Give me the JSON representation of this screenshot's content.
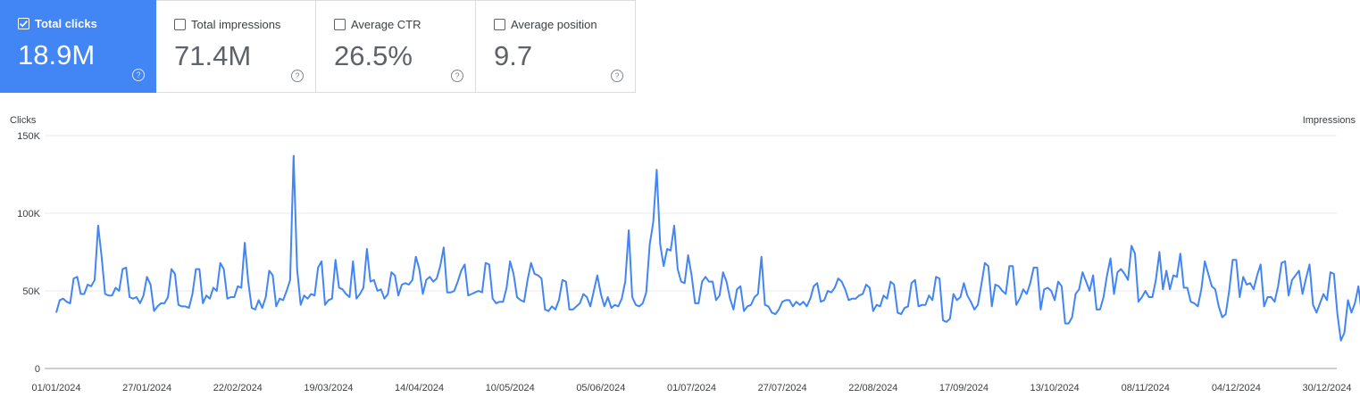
{
  "metrics": [
    {
      "label": "Total clicks",
      "value": "18.9M",
      "selected": true
    },
    {
      "label": "Total impressions",
      "value": "71.4M",
      "selected": false
    },
    {
      "label": "Average CTR",
      "value": "26.5%",
      "selected": false
    },
    {
      "label": "Average position",
      "value": "9.7",
      "selected": false
    }
  ],
  "help_glyph": "?",
  "colors": {
    "accent": "#4285f4",
    "line": "#4285f4",
    "grid": "#e8eaed"
  },
  "chart_data": {
    "type": "line",
    "ylabel": "Clicks",
    "y2label": "Impressions",
    "ylim": [
      0,
      150000
    ],
    "yticks": [
      0,
      50000,
      100000,
      150000
    ],
    "ytick_labels": [
      "0",
      "50K",
      "100K",
      "150K"
    ],
    "xlim": [
      "2024-01-01",
      "2024-12-30"
    ],
    "xtick_labels": [
      "01/01/2024",
      "27/01/2024",
      "22/02/2024",
      "19/03/2024",
      "14/04/2024",
      "10/05/2024",
      "05/06/2024",
      "01/07/2024",
      "27/07/2024",
      "22/08/2024",
      "17/09/2024",
      "13/10/2024",
      "08/11/2024",
      "04/12/2024",
      "30/12/2024"
    ],
    "grid": true,
    "series": [
      {
        "name": "Clicks",
        "x_start": "2024-01-01",
        "values": [
          36000,
          44000,
          45000,
          43000,
          42000,
          58000,
          59000,
          48000,
          48000,
          54000,
          53000,
          57000,
          92000,
          72000,
          48000,
          47000,
          47000,
          52000,
          50000,
          64000,
          65000,
          46000,
          45000,
          46000,
          42000,
          47000,
          59000,
          54000,
          37000,
          40000,
          42000,
          42000,
          46000,
          64000,
          61000,
          41000,
          40000,
          40000,
          39000,
          48000,
          64000,
          64000,
          42000,
          47000,
          45000,
          52000,
          50000,
          68000,
          64000,
          45000,
          46000,
          46000,
          53000,
          52000,
          81000,
          56000,
          39000,
          38000,
          44000,
          39000,
          46000,
          63000,
          60000,
          40000,
          45000,
          44000,
          50000,
          57000,
          137000,
          64000,
          41000,
          47000,
          45000,
          48000,
          47000,
          65000,
          69000,
          41000,
          44000,
          45000,
          70000,
          52000,
          51000,
          48000,
          46000,
          69000,
          45000,
          48000,
          52000,
          77000,
          56000,
          57000,
          50000,
          51000,
          45000,
          48000,
          62000,
          60000,
          47000,
          54000,
          55000,
          54000,
          57000,
          72000,
          64000,
          48000,
          57000,
          59000,
          56000,
          58000,
          66000,
          78000,
          49000,
          49000,
          50000,
          56000,
          63000,
          67000,
          47000,
          48000,
          49000,
          50000,
          49000,
          68000,
          67000,
          45000,
          42000,
          43000,
          43000,
          52000,
          69000,
          61000,
          46000,
          44000,
          43000,
          57000,
          68000,
          61000,
          60000,
          58000,
          38000,
          37000,
          40000,
          38000,
          44000,
          57000,
          56000,
          38000,
          38000,
          40000,
          42000,
          48000,
          46000,
          40000,
          50000,
          60000,
          48000,
          40000,
          46000,
          39000,
          41000,
          40000,
          45000,
          56000,
          89000,
          46000,
          41000,
          40000,
          42000,
          49000,
          80000,
          94000,
          128000,
          80000,
          66000,
          77000,
          76000,
          92000,
          64000,
          56000,
          55000,
          73000,
          60000,
          42000,
          42000,
          56000,
          59000,
          56000,
          56000,
          44000,
          47000,
          62000,
          56000,
          45000,
          38000,
          51000,
          53000,
          37000,
          40000,
          41000,
          46000,
          48000,
          72000,
          41000,
          40000,
          36000,
          35000,
          38000,
          43000,
          44000,
          44000,
          40000,
          43000,
          41000,
          43000,
          40000,
          45000,
          53000,
          55000,
          43000,
          44000,
          50000,
          49000,
          52000,
          58000,
          56000,
          51000,
          44000,
          45000,
          45000,
          47000,
          48000,
          54000,
          52000,
          37000,
          41000,
          40000,
          47000,
          45000,
          56000,
          54000,
          36000,
          35000,
          39000,
          40000,
          55000,
          57000,
          40000,
          41000,
          41000,
          47000,
          44000,
          59000,
          58000,
          31000,
          30000,
          32000,
          48000,
          44000,
          46000,
          55000,
          47000,
          43000,
          38000,
          41000,
          54000,
          68000,
          66000,
          40000,
          54000,
          53000,
          50000,
          48000,
          66000,
          66000,
          41000,
          45000,
          51000,
          48000,
          55000,
          65000,
          65000,
          38000,
          51000,
          52000,
          50000,
          44000,
          56000,
          53000,
          29000,
          29000,
          33000,
          48000,
          51000,
          62000,
          56000,
          50000,
          60000,
          38000,
          38000,
          46000,
          60000,
          71000,
          48000,
          62000,
          64000,
          61000,
          57000,
          79000,
          74000,
          43000,
          46000,
          50000,
          46000,
          46000,
          57000,
          75000,
          51000,
          63000,
          51000,
          60000,
          59000,
          74000,
          52000,
          52000,
          43000,
          42000,
          40000,
          51000,
          69000,
          61000,
          53000,
          51000,
          40000,
          33000,
          35000,
          50000,
          70000,
          70000,
          46000,
          59000,
          54000,
          55000,
          51000,
          60000,
          67000,
          40000,
          46000,
          46000,
          43000,
          53000,
          68000,
          69000,
          47000,
          57000,
          60000,
          63000,
          48000,
          58000,
          67000,
          41000,
          36000,
          42000,
          48000,
          44000,
          62000,
          61000,
          35000,
          18000,
          23000,
          44000,
          36000,
          42000,
          53000,
          35000,
          25000
        ]
      }
    ]
  }
}
